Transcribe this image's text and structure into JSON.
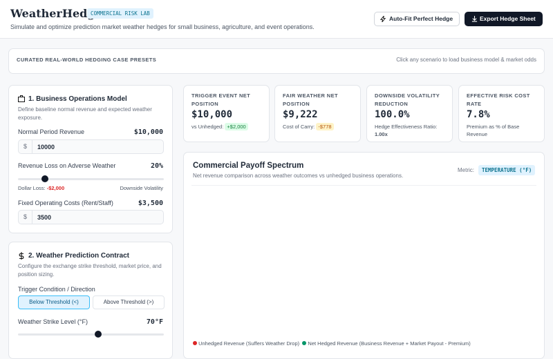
{
  "header": {
    "title": "WeatherHedge",
    "badge": "COMMERCIAL RISK LAB",
    "subtitle": "Simulate and optimize prediction market weather hedges for small business, agriculture, and event operations.",
    "buttons": [
      "Auto-Fit Perfect Hedge",
      "Export Hedge Sheet"
    ]
  },
  "presets": {
    "title": "CURATED REAL-WORLD HEDGING CASE PRESETS",
    "hint": "Click any scenario to load business model & market odds"
  },
  "business_model": {
    "title": "1. Business Operations Model",
    "description": "Define baseline normal revenue and expected weather exposure.",
    "revenue": {
      "label": "Normal Period Revenue",
      "display": "$10,000",
      "prefix": "$",
      "input": "10000"
    },
    "loss": {
      "label": "Revenue Loss on Adverse Weather",
      "display": "20%",
      "note_label": "Dollar Loss:",
      "note_value": "-$2,000",
      "right_note": "Downside Volatility"
    },
    "costs": {
      "label": "Fixed Operating Costs (Rent/Staff)",
      "display": "$3,500",
      "prefix": "$",
      "input": "3500"
    }
  },
  "contract": {
    "title": "2. Weather Prediction Contract",
    "description": "Configure the exchange strike threshold, market price, and position sizing.",
    "direction_label": "Trigger Condition / Direction",
    "direction_options": [
      "Below Threshold (<)",
      "Above Threshold (>)"
    ],
    "strike_label": "Weather Strike Level (°F)",
    "strike_display": "70°F"
  },
  "stats": [
    {
      "label": "TRIGGER EVENT NET POSITION",
      "value": "$10,000",
      "note": "vs Unhedged:",
      "badge": "+$2,000"
    },
    {
      "label": "FAIR WEATHER NET POSITION",
      "value": "$9,222",
      "note": "Cost of Carry:",
      "badge": "-$778"
    },
    {
      "label": "DOWNSIDE VOLATILITY REDUCTION",
      "value": "100.0%",
      "note": "Hedge Effectiveness Ratio:",
      "badge": "1.00x"
    },
    {
      "label": "EFFECTIVE RISK COST RATE",
      "value": "7.8%",
      "note": "Premium as % of Base Revenue"
    }
  ],
  "chart": {
    "title": "Commercial Payoff Spectrum",
    "subtitle": "Net revenue comparison across weather outcomes vs unhedged business operations.",
    "metric_label": "Metric:",
    "metric": "TEMPERATURE (°F)",
    "legend": [
      "Unhedged Revenue (Suffers Weather Drop)",
      "Net Hedged Revenue (Business Revenue + Market Payout - Premium)"
    ]
  }
}
